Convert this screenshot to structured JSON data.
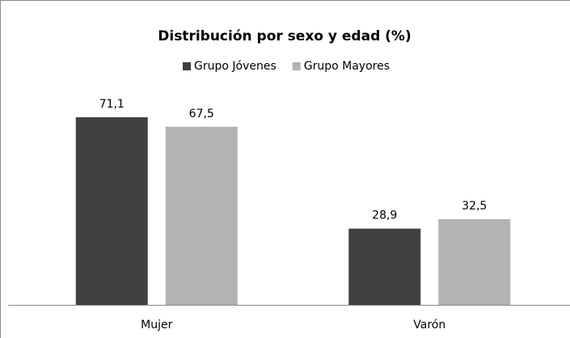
{
  "chart_data": {
    "type": "bar",
    "title": "Distribución por sexo y edad (%)",
    "categories": [
      "Mujer",
      "Varón"
    ],
    "series": [
      {
        "name": "Grupo Jóvenes",
        "color": "#404040",
        "values": [
          71.1,
          28.9
        ],
        "value_labels": [
          "71,1",
          "28,9"
        ]
      },
      {
        "name": "Grupo Mayores",
        "color": "#b3b3b3",
        "values": [
          67.5,
          32.5
        ],
        "value_labels": [
          "67,5",
          "32,5"
        ]
      }
    ],
    "ylim": [
      0,
      80
    ],
    "legend": "top"
  }
}
